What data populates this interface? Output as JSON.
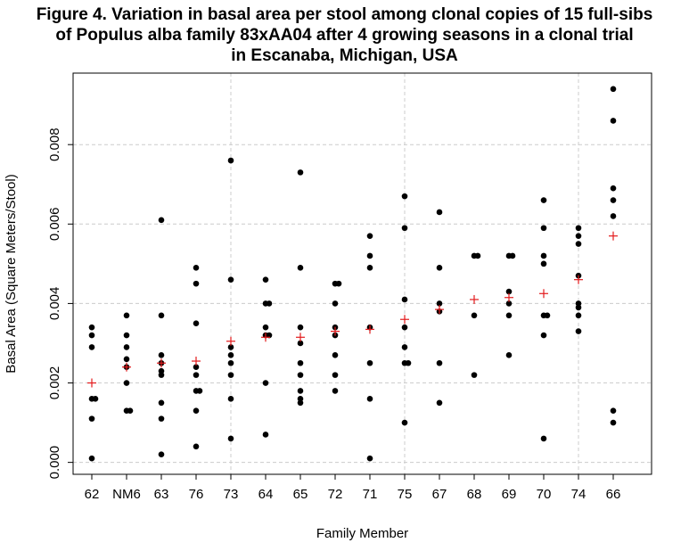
{
  "title_lines": [
    "Figure 4. Variation in basal area per stool among clonal copies of 15 full-sibs",
    "of Populus alba family 83xAA04 after 4 growing seasons in a clonal trial",
    "in Escanaba, Michigan, USA"
  ],
  "chart_data": {
    "type": "scatter",
    "xlabel": "Family Member",
    "ylabel": "Basal Area (Square Meters/Stool)",
    "categories": [
      "62",
      "NM6",
      "63",
      "76",
      "73",
      "64",
      "65",
      "72",
      "71",
      "75",
      "67",
      "68",
      "69",
      "70",
      "74",
      "66"
    ],
    "y_ticks": [
      "0.000",
      "0.002",
      "0.004",
      "0.006",
      "0.008"
    ],
    "ylim": [
      -0.0003,
      0.0098
    ],
    "grid": true,
    "colors": {
      "points": "#000000",
      "means": "#e31a1c",
      "grid": "#cccccc"
    },
    "series": [
      {
        "points": [
          {
            "category": "62",
            "values": [
              0.0034,
              0.0032,
              0.0029,
              0.0016,
              0.0016,
              0.0011,
              0.0001
            ]
          },
          {
            "category": "NM6",
            "values": [
              0.0037,
              0.0032,
              0.0029,
              0.0026,
              0.0024,
              0.002,
              0.0013,
              0.0013
            ]
          },
          {
            "category": "63",
            "values": [
              0.0061,
              0.0037,
              0.0027,
              0.0025,
              0.0023,
              0.0022,
              0.0015,
              0.0011,
              0.0002
            ]
          },
          {
            "category": "76",
            "values": [
              0.0049,
              0.0045,
              0.0035,
              0.0024,
              0.0022,
              0.0018,
              0.0018,
              0.0013,
              0.0004
            ]
          },
          {
            "category": "73",
            "values": [
              0.0076,
              0.0046,
              0.0029,
              0.0027,
              0.0025,
              0.0022,
              0.0016,
              0.0006
            ]
          },
          {
            "category": "64",
            "values": [
              0.0046,
              0.004,
              0.004,
              0.0034,
              0.0032,
              0.0032,
              0.002,
              0.0007
            ]
          },
          {
            "category": "65",
            "values": [
              0.0073,
              0.0049,
              0.0034,
              0.003,
              0.0025,
              0.0022,
              0.0018,
              0.0016,
              0.0015
            ]
          },
          {
            "category": "72",
            "values": [
              0.0045,
              0.0045,
              0.004,
              0.0034,
              0.0032,
              0.0027,
              0.0022,
              0.0018
            ]
          },
          {
            "category": "71",
            "values": [
              0.0057,
              0.0052,
              0.0049,
              0.0034,
              0.0025,
              0.0016,
              0.0001
            ]
          },
          {
            "category": "75",
            "values": [
              0.0067,
              0.0059,
              0.0041,
              0.0034,
              0.0029,
              0.0025,
              0.0025,
              0.001
            ]
          },
          {
            "category": "67",
            "values": [
              0.0063,
              0.0049,
              0.004,
              0.0038,
              0.0025,
              0.0015
            ]
          },
          {
            "category": "68",
            "values": [
              0.0052,
              0.0052,
              0.0037,
              0.0022
            ]
          },
          {
            "category": "69",
            "values": [
              0.0052,
              0.0052,
              0.0043,
              0.004,
              0.0037,
              0.0027
            ]
          },
          {
            "category": "70",
            "values": [
              0.0066,
              0.0059,
              0.0052,
              0.005,
              0.0037,
              0.0037,
              0.0032,
              0.0006
            ]
          },
          {
            "category": "74",
            "values": [
              0.0059,
              0.0057,
              0.0055,
              0.0047,
              0.004,
              0.0039,
              0.0037,
              0.0033
            ]
          },
          {
            "category": "66",
            "values": [
              0.0094,
              0.0086,
              0.0069,
              0.0066,
              0.0062,
              0.0013,
              0.001
            ]
          }
        ]
      },
      {
        "means": [
          0.002,
          0.0024,
          0.0025,
          0.00255,
          0.00305,
          0.00315,
          0.00315,
          0.0033,
          0.00335,
          0.0036,
          0.00385,
          0.0041,
          0.00415,
          0.00425,
          0.0046,
          0.0057
        ]
      }
    ]
  }
}
